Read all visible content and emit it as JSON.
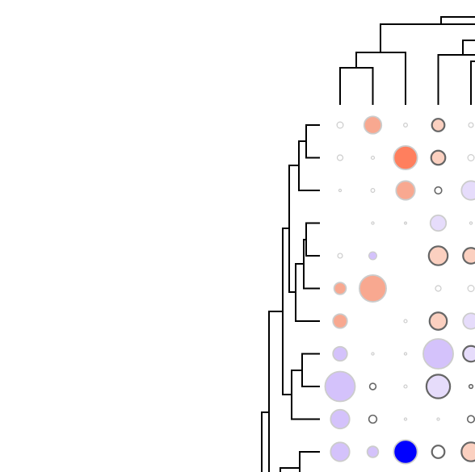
{
  "chart_data": {
    "type": "bubble-heatmap",
    "title": "",
    "xlabel": "",
    "ylabel": "",
    "grid": false,
    "legend": "none",
    "n_columns": 5,
    "n_rows": 11,
    "colors": {
      "positive_strong": "#ff7f5e",
      "positive_medium": "#f8a890",
      "positive_light": "#fbd0c0",
      "negative_light": "#e6dcfb",
      "negative_medium": "#d4c2fb",
      "negative_strong": "#0000ff",
      "dendrogram": "#000000"
    },
    "cells": [
      {
        "row": 1,
        "col": 1,
        "size": 0.2,
        "value": 0.05
      },
      {
        "row": 1,
        "col": 2,
        "size": 0.55,
        "value": 0.55
      },
      {
        "row": 1,
        "col": 3,
        "size": 0.12,
        "value": 0.02
      },
      {
        "row": 1,
        "col": 4,
        "size": 0.4,
        "value": 0.35,
        "significant": true
      },
      {
        "row": 1,
        "col": 5,
        "size": 0.15,
        "value": 0.02
      },
      {
        "row": 2,
        "col": 1,
        "size": 0.18,
        "value": 0.03
      },
      {
        "row": 2,
        "col": 2,
        "size": 0.1,
        "value": 0.02
      },
      {
        "row": 2,
        "col": 3,
        "size": 0.75,
        "value": 0.75
      },
      {
        "row": 2,
        "col": 4,
        "size": 0.45,
        "value": 0.35,
        "significant": true
      },
      {
        "row": 2,
        "col": 5,
        "size": 0.2,
        "value": 0.03
      },
      {
        "row": 3,
        "col": 1,
        "size": 0.08,
        "value": 0.03
      },
      {
        "row": 3,
        "col": 2,
        "size": 0.12,
        "value": 0.03
      },
      {
        "row": 3,
        "col": 3,
        "size": 0.6,
        "value": 0.6
      },
      {
        "row": 3,
        "col": 4,
        "size": 0.22,
        "value": 0.02,
        "significant": true
      },
      {
        "row": 3,
        "col": 5,
        "size": 0.6,
        "value": -0.35
      },
      {
        "row": 4,
        "col": 1,
        "size": 0.0,
        "value": 0.0
      },
      {
        "row": 4,
        "col": 2,
        "size": 0.08,
        "value": 0.02
      },
      {
        "row": 4,
        "col": 3,
        "size": 0.06,
        "value": 0.02
      },
      {
        "row": 4,
        "col": 4,
        "size": 0.5,
        "value": -0.3
      },
      {
        "row": 4,
        "col": 5,
        "size": 0.08,
        "value": 0.01
      },
      {
        "row": 5,
        "col": 1,
        "size": 0.15,
        "value": 0.03
      },
      {
        "row": 5,
        "col": 2,
        "size": 0.25,
        "value": -0.55
      },
      {
        "row": 5,
        "col": 3,
        "size": 0.0,
        "value": 0.0
      },
      {
        "row": 5,
        "col": 4,
        "size": 0.6,
        "value": 0.3,
        "significant": true
      },
      {
        "row": 5,
        "col": 5,
        "size": 0.5,
        "value": 0.3,
        "significant": true
      },
      {
        "row": 6,
        "col": 1,
        "size": 0.38,
        "value": 0.5
      },
      {
        "row": 6,
        "col": 2,
        "size": 0.85,
        "value": 0.6
      },
      {
        "row": 6,
        "col": 3,
        "size": 0.0,
        "value": 0.0
      },
      {
        "row": 6,
        "col": 4,
        "size": 0.18,
        "value": 0.03
      },
      {
        "row": 6,
        "col": 5,
        "size": 0.2,
        "value": 0.02
      },
      {
        "row": 7,
        "col": 1,
        "size": 0.45,
        "value": 0.5
      },
      {
        "row": 7,
        "col": 2,
        "size": 0.0,
        "value": 0.0
      },
      {
        "row": 7,
        "col": 3,
        "size": 0.1,
        "value": 0.02
      },
      {
        "row": 7,
        "col": 4,
        "size": 0.55,
        "value": 0.4,
        "significant": true
      },
      {
        "row": 7,
        "col": 5,
        "size": 0.5,
        "value": -0.25
      },
      {
        "row": 8,
        "col": 1,
        "size": 0.45,
        "value": -0.5
      },
      {
        "row": 8,
        "col": 2,
        "size": 0.08,
        "value": 0.02
      },
      {
        "row": 8,
        "col": 3,
        "size": 0.08,
        "value": 0.02
      },
      {
        "row": 8,
        "col": 4,
        "size": 0.95,
        "value": -0.55
      },
      {
        "row": 8,
        "col": 5,
        "size": 0.5,
        "value": -0.3,
        "significant": true
      },
      {
        "row": 9,
        "col": 1,
        "size": 0.95,
        "value": -0.55
      },
      {
        "row": 9,
        "col": 2,
        "size": 0.2,
        "value": 0.02,
        "significant": true
      },
      {
        "row": 9,
        "col": 3,
        "size": 0.1,
        "value": 0.02
      },
      {
        "row": 9,
        "col": 4,
        "size": 0.75,
        "value": -0.25,
        "significant": true
      },
      {
        "row": 9,
        "col": 5,
        "size": 0.12,
        "value": 0.02,
        "significant": true
      },
      {
        "row": 10,
        "col": 1,
        "size": 0.6,
        "value": -0.5
      },
      {
        "row": 10,
        "col": 2,
        "size": 0.25,
        "value": 0.03,
        "significant": true
      },
      {
        "row": 10,
        "col": 3,
        "size": 0.08,
        "value": 0.02
      },
      {
        "row": 10,
        "col": 4,
        "size": 0.08,
        "value": 0.02
      },
      {
        "row": 10,
        "col": 5,
        "size": 0.22,
        "value": 0.02,
        "significant": true
      },
      {
        "row": 11,
        "col": 1,
        "size": 0.6,
        "value": -0.45
      },
      {
        "row": 11,
        "col": 2,
        "size": 0.35,
        "value": -0.4
      },
      {
        "row": 11,
        "col": 3,
        "size": 0.75,
        "value": -1.0
      },
      {
        "row": 11,
        "col": 4,
        "size": 0.4,
        "value": 0.02,
        "significant": true
      },
      {
        "row": 11,
        "col": 5,
        "size": 0.6,
        "value": 0.3,
        "significant": true
      }
    ]
  }
}
